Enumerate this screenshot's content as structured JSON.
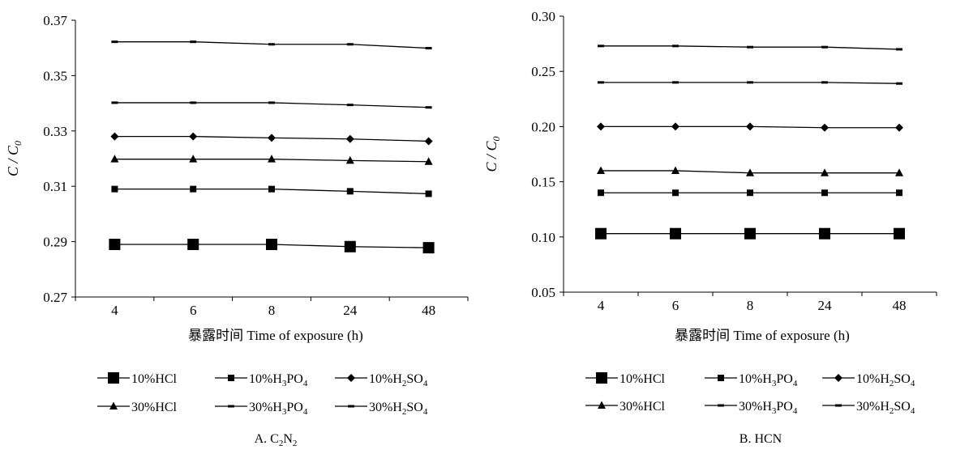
{
  "chart_data": [
    {
      "type": "line",
      "caption": "A. C₂N₂",
      "xlabel": "暴露时间 Time of exposure (h)",
      "ylabel": "C / C₀",
      "categories": [
        "4",
        "6",
        "8",
        "24",
        "48"
      ],
      "yticks": [
        "0.27",
        "0.29",
        "0.31",
        "0.33",
        "0.35",
        "0.37"
      ],
      "ylim": [
        0.27,
        0.37
      ],
      "grid": false,
      "legend_position": "bottom",
      "series": [
        {
          "name": "10%HCl",
          "marker": "square-large",
          "values": [
            0.289,
            0.289,
            0.289,
            0.2882,
            0.2878
          ]
        },
        {
          "name": "10%H₃PO₄",
          "marker": "square-small",
          "values": [
            0.309,
            0.309,
            0.309,
            0.3082,
            0.3073
          ]
        },
        {
          "name": "10%H₂SO₄",
          "marker": "diamond",
          "values": [
            0.328,
            0.328,
            0.3275,
            0.3271,
            0.3263
          ]
        },
        {
          "name": "30%HCl",
          "marker": "triangle",
          "values": [
            0.3198,
            0.3198,
            0.3198,
            0.3193,
            0.3189
          ]
        },
        {
          "name": "30%H₃PO₄",
          "marker": "dash",
          "values": [
            0.3402,
            0.3402,
            0.3402,
            0.3394,
            0.3385
          ]
        },
        {
          "name": "30%H₂SO₄",
          "marker": "dash",
          "values": [
            0.3622,
            0.3622,
            0.3613,
            0.3613,
            0.3599
          ]
        }
      ]
    },
    {
      "type": "line",
      "caption": "B. HCN",
      "xlabel": "暴露时间 Time of exposure (h)",
      "ylabel": "C / C₀",
      "categories": [
        "4",
        "6",
        "8",
        "24",
        "48"
      ],
      "yticks": [
        "0.05",
        "0.10",
        "0.15",
        "0.20",
        "0.25",
        "0.30"
      ],
      "ylim": [
        0.05,
        0.3
      ],
      "grid": false,
      "legend_position": "bottom",
      "series": [
        {
          "name": "10%HCl",
          "marker": "square-large",
          "values": [
            0.103,
            0.103,
            0.103,
            0.103,
            0.103
          ]
        },
        {
          "name": "10%H₃PO₄",
          "marker": "square-small",
          "values": [
            0.14,
            0.14,
            0.14,
            0.14,
            0.14
          ]
        },
        {
          "name": "10%H₂SO₄",
          "marker": "diamond",
          "values": [
            0.2,
            0.2,
            0.2,
            0.199,
            0.199
          ]
        },
        {
          "name": "30%HCl",
          "marker": "triangle",
          "values": [
            0.16,
            0.16,
            0.158,
            0.158,
            0.158
          ]
        },
        {
          "name": "30%H₃PO₄",
          "marker": "dash",
          "values": [
            0.24,
            0.24,
            0.24,
            0.24,
            0.239
          ]
        },
        {
          "name": "30%H₂SO₄",
          "marker": "dash",
          "values": [
            0.273,
            0.273,
            0.272,
            0.272,
            0.27
          ]
        }
      ]
    }
  ]
}
